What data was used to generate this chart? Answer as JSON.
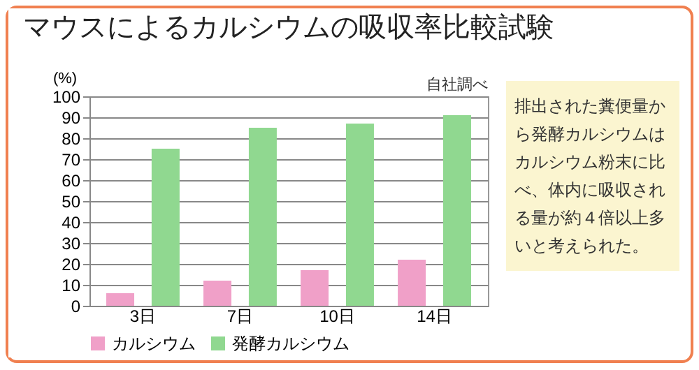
{
  "chart_data": {
    "type": "bar",
    "title": "マウスによるカルシウムの吸収率比較試験",
    "subtitle": "自社調べ",
    "ylabel": "(%)",
    "categories": [
      "3日",
      "7日",
      "10日",
      "14日"
    ],
    "series": [
      {
        "name": "カルシウム",
        "color": "#f0a0c8",
        "values": [
          6,
          12,
          17,
          22
        ]
      },
      {
        "name": "発酵カルシウム",
        "color": "#90d890",
        "values": [
          75,
          85,
          87,
          91
        ]
      }
    ],
    "ylim": [
      0,
      100
    ],
    "yticks": [
      0,
      10,
      20,
      30,
      40,
      50,
      60,
      70,
      80,
      90,
      100
    ],
    "grid": "y",
    "legend": "bottom",
    "annotations": [
      "排出された糞便量から発酵カルシウムはカルシウム粉末に比べ、体内に吸収される量が約４倍以上多いと考えられた。"
    ]
  }
}
